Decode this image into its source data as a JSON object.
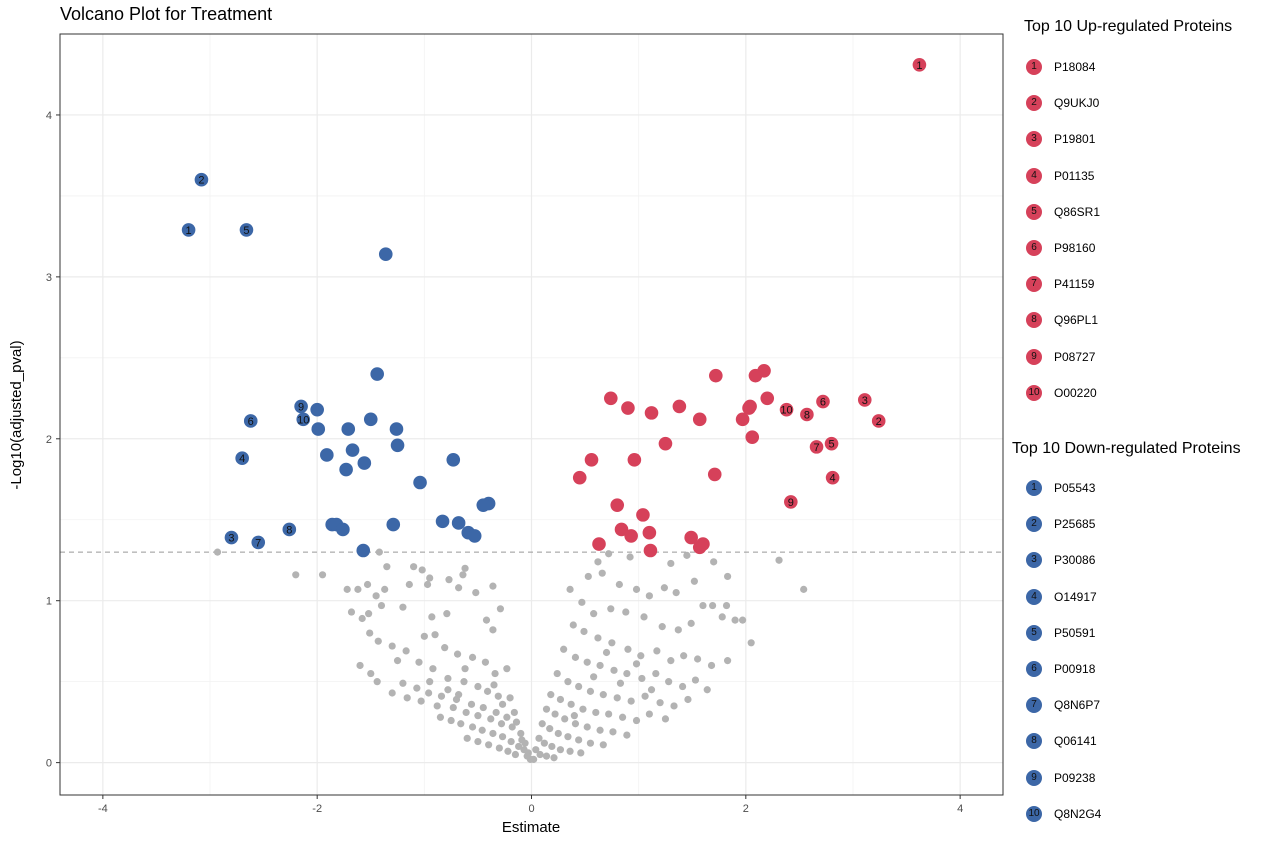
{
  "chart_data": {
    "type": "scatter",
    "title": "Volcano Plot for Treatment",
    "xlabel": "Estimate",
    "ylabel": "-Log10(adjusted_pval)",
    "xlim": [
      -4.4,
      4.4
    ],
    "ylim": [
      -0.2,
      4.5
    ],
    "xticks": [
      -4,
      -2,
      0,
      2,
      4
    ],
    "yticks": [
      0,
      1,
      2,
      3,
      4
    ],
    "grid": true,
    "threshold_y": 1.3,
    "colors": {
      "up": "#D6415A",
      "down": "#3C67A7",
      "ns": "#B3B3B3",
      "threshold": "#999999"
    },
    "legend_position": "right",
    "up_legend_title": "Top 10 Up-regulated Proteins",
    "down_legend_title": "Top 10 Down-regulated Proteins",
    "up_top": [
      {
        "rank": "1",
        "id": "P18084",
        "x": 3.62,
        "y": 4.31
      },
      {
        "rank": "2",
        "id": "Q9UKJ0",
        "x": 3.24,
        "y": 2.11
      },
      {
        "rank": "3",
        "id": "P19801",
        "x": 3.11,
        "y": 2.24
      },
      {
        "rank": "4",
        "id": "P01135",
        "x": 2.81,
        "y": 1.76
      },
      {
        "rank": "5",
        "id": "Q86SR1",
        "x": 2.8,
        "y": 1.97
      },
      {
        "rank": "6",
        "id": "P98160",
        "x": 2.72,
        "y": 2.23
      },
      {
        "rank": "7",
        "id": "P41159",
        "x": 2.66,
        "y": 1.95
      },
      {
        "rank": "8",
        "id": "Q96PL1",
        "x": 2.57,
        "y": 2.15
      },
      {
        "rank": "9",
        "id": "P08727",
        "x": 2.42,
        "y": 1.61
      },
      {
        "rank": "10",
        "id": "O00220",
        "x": 2.38,
        "y": 2.18
      }
    ],
    "down_top": [
      {
        "rank": "1",
        "id": "P05543",
        "x": -3.2,
        "y": 3.29
      },
      {
        "rank": "2",
        "id": "P25685",
        "x": -3.08,
        "y": 3.6
      },
      {
        "rank": "3",
        "id": "P30086",
        "x": -2.8,
        "y": 1.39
      },
      {
        "rank": "4",
        "id": "O14917",
        "x": -2.7,
        "y": 1.88
      },
      {
        "rank": "5",
        "id": "P50591",
        "x": -2.66,
        "y": 3.29
      },
      {
        "rank": "6",
        "id": "P00918",
        "x": -2.62,
        "y": 2.11
      },
      {
        "rank": "7",
        "id": "Q8N6P7",
        "x": -2.55,
        "y": 1.36
      },
      {
        "rank": "8",
        "id": "Q06141",
        "x": -2.26,
        "y": 1.44
      },
      {
        "rank": "9",
        "id": "P09238",
        "x": -2.15,
        "y": 2.2
      },
      {
        "rank": "10",
        "id": "Q8N2G4",
        "x": -2.13,
        "y": 2.12
      }
    ],
    "up_other": [
      [
        2.17,
        2.42
      ],
      [
        2.09,
        2.39
      ],
      [
        1.72,
        2.39
      ],
      [
        2.2,
        2.25
      ],
      [
        0.74,
        2.25
      ],
      [
        0.9,
        2.19
      ],
      [
        1.12,
        2.16
      ],
      [
        1.38,
        2.2
      ],
      [
        1.57,
        2.12
      ],
      [
        1.97,
        2.12
      ],
      [
        2.03,
        2.19
      ],
      [
        2.04,
        2.2
      ],
      [
        2.06,
        2.01
      ],
      [
        1.25,
        1.97
      ],
      [
        0.96,
        1.87
      ],
      [
        0.56,
        1.87
      ],
      [
        0.45,
        1.76
      ],
      [
        1.71,
        1.78
      ],
      [
        0.8,
        1.59
      ],
      [
        1.04,
        1.53
      ],
      [
        0.84,
        1.44
      ],
      [
        0.93,
        1.4
      ],
      [
        1.1,
        1.42
      ],
      [
        1.49,
        1.39
      ],
      [
        0.63,
        1.35
      ],
      [
        1.11,
        1.31
      ],
      [
        1.57,
        1.33
      ],
      [
        1.6,
        1.35
      ]
    ],
    "down_other": [
      [
        -1.36,
        3.14
      ],
      [
        -1.44,
        2.4
      ],
      [
        -2.0,
        2.18
      ],
      [
        -1.99,
        2.06
      ],
      [
        -1.71,
        2.06
      ],
      [
        -1.5,
        2.12
      ],
      [
        -1.26,
        2.06
      ],
      [
        -1.67,
        1.93
      ],
      [
        -1.91,
        1.9
      ],
      [
        -1.56,
        1.85
      ],
      [
        -1.73,
        1.81
      ],
      [
        -1.25,
        1.96
      ],
      [
        -0.73,
        1.87
      ],
      [
        -1.04,
        1.73
      ],
      [
        -0.4,
        1.6
      ],
      [
        -0.45,
        1.59
      ],
      [
        -0.83,
        1.49
      ],
      [
        -0.68,
        1.48
      ],
      [
        -0.59,
        1.42
      ],
      [
        -0.53,
        1.4
      ],
      [
        -1.86,
        1.47
      ],
      [
        -1.82,
        1.47
      ],
      [
        -1.76,
        1.44
      ],
      [
        -1.29,
        1.47
      ],
      [
        -1.57,
        1.31
      ]
    ],
    "ns": [
      [
        -2.93,
        1.3
      ],
      [
        -2.2,
        1.16
      ],
      [
        -1.95,
        1.16
      ],
      [
        -1.42,
        1.3
      ],
      [
        -1.35,
        1.21
      ],
      [
        -1.02,
        1.19
      ],
      [
        -1.1,
        1.21
      ],
      [
        -0.95,
        1.14
      ],
      [
        -1.53,
        1.1
      ],
      [
        -1.72,
        1.07
      ],
      [
        -1.62,
        1.07
      ],
      [
        -1.45,
        1.03
      ],
      [
        -1.37,
        1.07
      ],
      [
        -1.14,
        1.1
      ],
      [
        -0.97,
        1.1
      ],
      [
        -0.77,
        1.13
      ],
      [
        -0.64,
        1.16
      ],
      [
        -0.62,
        1.2
      ],
      [
        -0.68,
        1.08
      ],
      [
        -0.52,
        1.05
      ],
      [
        -0.36,
        1.09
      ],
      [
        -0.29,
        0.95
      ],
      [
        -0.42,
        0.88
      ],
      [
        -0.36,
        0.82
      ],
      [
        -0.79,
        0.92
      ],
      [
        -0.93,
        0.9
      ],
      [
        -1.2,
        0.96
      ],
      [
        -1.4,
        0.97
      ],
      [
        -1.52,
        0.92
      ],
      [
        -1.68,
        0.93
      ],
      [
        -1.58,
        0.89
      ],
      [
        -1.43,
        0.75
      ],
      [
        -1.3,
        0.72
      ],
      [
        -1.17,
        0.69
      ],
      [
        -1.0,
        0.78
      ],
      [
        -0.9,
        0.79
      ],
      [
        -0.81,
        0.71
      ],
      [
        -0.69,
        0.67
      ],
      [
        -0.55,
        0.65
      ],
      [
        -0.43,
        0.62
      ],
      [
        -0.34,
        0.55
      ],
      [
        -0.23,
        0.58
      ],
      [
        -1.51,
        0.8
      ],
      [
        -1.25,
        0.63
      ],
      [
        -1.05,
        0.62
      ],
      [
        -0.92,
        0.58
      ],
      [
        -0.78,
        0.52
      ],
      [
        -0.63,
        0.5
      ],
      [
        -0.5,
        0.47
      ],
      [
        -0.41,
        0.44
      ],
      [
        -0.31,
        0.41
      ],
      [
        -0.2,
        0.4
      ],
      [
        -1.6,
        0.6
      ],
      [
        -1.5,
        0.55
      ],
      [
        -1.44,
        0.5
      ],
      [
        -1.3,
        0.43
      ],
      [
        -1.16,
        0.4
      ],
      [
        -1.03,
        0.38
      ],
      [
        -0.88,
        0.35
      ],
      [
        -0.73,
        0.34
      ],
      [
        -0.61,
        0.31
      ],
      [
        -0.5,
        0.29
      ],
      [
        -0.38,
        0.27
      ],
      [
        -0.28,
        0.24
      ],
      [
        -0.18,
        0.22
      ],
      [
        -0.1,
        0.18
      ],
      [
        -0.06,
        0.12
      ],
      [
        -0.03,
        0.06
      ],
      [
        -1.2,
        0.49
      ],
      [
        -1.07,
        0.46
      ],
      [
        -0.96,
        0.43
      ],
      [
        -0.84,
        0.41
      ],
      [
        -0.7,
        0.39
      ],
      [
        -0.56,
        0.36
      ],
      [
        -0.45,
        0.34
      ],
      [
        -0.33,
        0.31
      ],
      [
        -0.23,
        0.28
      ],
      [
        -0.14,
        0.25
      ],
      [
        -0.09,
        0.14
      ],
      [
        -0.85,
        0.28
      ],
      [
        -0.75,
        0.26
      ],
      [
        -0.66,
        0.24
      ],
      [
        -0.55,
        0.22
      ],
      [
        -0.46,
        0.2
      ],
      [
        -0.36,
        0.18
      ],
      [
        -0.27,
        0.16
      ],
      [
        -0.19,
        0.13
      ],
      [
        -0.12,
        0.1
      ],
      [
        -0.07,
        0.08
      ],
      [
        -0.04,
        0.04
      ],
      [
        -0.6,
        0.15
      ],
      [
        -0.5,
        0.13
      ],
      [
        -0.4,
        0.11
      ],
      [
        -0.3,
        0.09
      ],
      [
        -0.22,
        0.07
      ],
      [
        -0.15,
        0.05
      ],
      [
        -0.01,
        0.02
      ],
      [
        -0.95,
        0.5
      ],
      [
        -0.62,
        0.58
      ],
      [
        -0.35,
        0.48
      ],
      [
        -0.27,
        0.36
      ],
      [
        -0.16,
        0.31
      ],
      [
        -0.78,
        0.45
      ],
      [
        -0.68,
        0.42
      ],
      [
        0.62,
        1.24
      ],
      [
        0.72,
        1.29
      ],
      [
        0.92,
        1.27
      ],
      [
        1.3,
        1.23
      ],
      [
        1.45,
        1.28
      ],
      [
        1.7,
        1.24
      ],
      [
        1.83,
        1.15
      ],
      [
        2.31,
        1.25
      ],
      [
        2.54,
        1.07
      ],
      [
        0.53,
        1.15
      ],
      [
        0.66,
        1.17
      ],
      [
        0.82,
        1.1
      ],
      [
        0.98,
        1.07
      ],
      [
        1.1,
        1.03
      ],
      [
        1.24,
        1.08
      ],
      [
        1.35,
        1.05
      ],
      [
        1.52,
        1.12
      ],
      [
        1.6,
        0.97
      ],
      [
        1.69,
        0.97
      ],
      [
        1.78,
        0.9
      ],
      [
        1.82,
        0.97
      ],
      [
        1.9,
        0.88
      ],
      [
        1.97,
        0.88
      ],
      [
        2.05,
        0.74
      ],
      [
        0.36,
        1.07
      ],
      [
        0.47,
        0.99
      ],
      [
        0.58,
        0.92
      ],
      [
        0.74,
        0.95
      ],
      [
        0.88,
        0.93
      ],
      [
        1.05,
        0.9
      ],
      [
        1.22,
        0.84
      ],
      [
        1.37,
        0.82
      ],
      [
        1.49,
        0.86
      ],
      [
        0.39,
        0.85
      ],
      [
        0.49,
        0.81
      ],
      [
        0.62,
        0.77
      ],
      [
        0.75,
        0.74
      ],
      [
        0.9,
        0.7
      ],
      [
        1.02,
        0.66
      ],
      [
        1.17,
        0.69
      ],
      [
        1.3,
        0.63
      ],
      [
        1.42,
        0.66
      ],
      [
        1.55,
        0.64
      ],
      [
        1.68,
        0.6
      ],
      [
        1.83,
        0.63
      ],
      [
        0.3,
        0.7
      ],
      [
        0.41,
        0.65
      ],
      [
        0.52,
        0.62
      ],
      [
        0.64,
        0.6
      ],
      [
        0.77,
        0.57
      ],
      [
        0.89,
        0.55
      ],
      [
        1.03,
        0.52
      ],
      [
        1.16,
        0.55
      ],
      [
        1.28,
        0.5
      ],
      [
        1.41,
        0.47
      ],
      [
        1.53,
        0.51
      ],
      [
        1.64,
        0.45
      ],
      [
        0.24,
        0.55
      ],
      [
        0.34,
        0.5
      ],
      [
        0.44,
        0.47
      ],
      [
        0.55,
        0.44
      ],
      [
        0.67,
        0.42
      ],
      [
        0.8,
        0.4
      ],
      [
        0.93,
        0.38
      ],
      [
        1.06,
        0.41
      ],
      [
        1.2,
        0.37
      ],
      [
        1.33,
        0.35
      ],
      [
        0.18,
        0.42
      ],
      [
        0.27,
        0.39
      ],
      [
        0.37,
        0.36
      ],
      [
        0.48,
        0.33
      ],
      [
        0.6,
        0.31
      ],
      [
        0.72,
        0.3
      ],
      [
        0.85,
        0.28
      ],
      [
        0.98,
        0.26
      ],
      [
        1.1,
        0.3
      ],
      [
        0.14,
        0.33
      ],
      [
        0.22,
        0.3
      ],
      [
        0.31,
        0.27
      ],
      [
        0.41,
        0.24
      ],
      [
        0.52,
        0.22
      ],
      [
        0.64,
        0.2
      ],
      [
        0.76,
        0.19
      ],
      [
        0.89,
        0.17
      ],
      [
        0.1,
        0.24
      ],
      [
        0.17,
        0.21
      ],
      [
        0.25,
        0.18
      ],
      [
        0.34,
        0.16
      ],
      [
        0.44,
        0.14
      ],
      [
        0.55,
        0.12
      ],
      [
        0.67,
        0.11
      ],
      [
        0.07,
        0.15
      ],
      [
        0.12,
        0.12
      ],
      [
        0.19,
        0.1
      ],
      [
        0.27,
        0.08
      ],
      [
        0.36,
        0.07
      ],
      [
        0.46,
        0.06
      ],
      [
        0.04,
        0.08
      ],
      [
        0.08,
        0.05
      ],
      [
        0.14,
        0.04
      ],
      [
        0.21,
        0.03
      ],
      [
        0.02,
        0.02
      ],
      [
        0.98,
        0.61
      ],
      [
        0.7,
        0.68
      ],
      [
        1.12,
        0.45
      ],
      [
        0.58,
        0.53
      ],
      [
        1.46,
        0.39
      ],
      [
        0.83,
        0.49
      ],
      [
        1.25,
        0.27
      ],
      [
        0.4,
        0.29
      ]
    ]
  }
}
